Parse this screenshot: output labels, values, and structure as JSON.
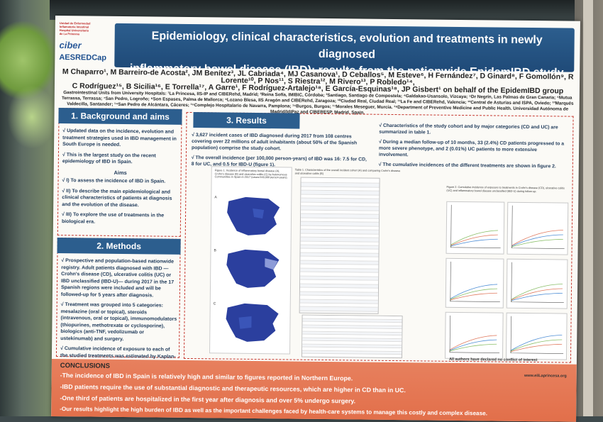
{
  "poster": {
    "logos": {
      "hospital_line1": "Unidad de Enfermedad",
      "hospital_line2": "Inflamatoria Intestinal",
      "hospital_line3": "Hospital Universitario",
      "hospital_line4": "de La Princesa",
      "ciber": "ciber",
      "aesredcap": "AESREDCap"
    },
    "title_line1": "Epidemiology, clinical characteristics, evolution and treatments in newly diagnosed",
    "title_line2": "inflammatory bowel disease (IBD): results from the nationwide EpidemIBD study of GETECCU",
    "authors_line1": "M Chaparro¹, M Barreiro-de Acosta², JM Benítez³, JL Cabriada⁴, MJ Casanova¹, D Ceballos⁵, M Esteve⁶, H Fernández⁷, D Ginard⁸, F Gomollón⁹, R Lorente¹⁰, P Nos¹¹, S Riestra¹², M Rivero¹³, P Robledo¹⁴,",
    "authors_line2": "C Rodríguez¹⁵, B Sicilia¹⁶, E Torrella¹⁷, A Garre¹, F Rodríguez-Artalejo¹⁸, E García-Esquinas¹⁸, JP Gisbert¹ on behalf of the EpidemIBD group",
    "affiliations": "Gastrointestinal Units from University Hospitals: ¹La Princesa, IIS-IP and CIBERehd, Madrid; ²Reina Sofía, IMIBIC, Córdoba; ³Santiago, Santiago de Compostela; ⁴Galdakao-Usansolo, Vizcaya; ⁵Dr Negrín, Las Palmas de Gran Canaria; ⁶Mutua Terrassa, Terrassa; ⁷San Pedro, Logroño; ⁸Son Espases, Palma de Mallorca; ⁹Lozano Blesa, IIS Aragón and CIBERehd, Zaragoza; ¹⁰Ciudad Real, Ciudad Real; ¹¹La Fe and CIBERehd, Valencia; ¹²Central de Asturias and ISPA, Oviedo; ¹³Marqués Valdecilla, Santander; ¹⁴San Pedro de Alcántara, Cáceres; ¹⁵Complejo Hospitalario de Navarra, Pamplona; ¹⁶Burgos, Burgos; ¹⁷Morales Meseguer, Murcia. ¹⁸Department of Preventive Medicine and Public Health. Universidad Autónoma de Madrid/IdiPaz and CIBERESP. Madrid, Spain.",
    "background": {
      "heading": "1. Background and aims",
      "p1": "√ Updated data on the incidence, evolution and treatment strategies used in IBD management in South Europe is needed.",
      "p2": "√ This is the largest study on the recent epidemiology of IBD in Spain.",
      "aims_label": "Aims",
      "aim1": "√ I) To assess the incidence of IBD in Spain.",
      "aim2": "√ II) To describe the main epidemiological and clinical characteristics of patients at diagnosis and the evolution of the disease.",
      "aim3": "√ III) To explore the use of treatments in the biological era."
    },
    "methods": {
      "heading": "2. Methods",
      "p1": "√ Prospective and population-based nationwide registry. Adult patients diagnosed with IBD —Crohn's disease (CD), ulcerative colitis (UC) or IBD unclassified (IBD-U)— during 2017 in the 17 Spanish regions were included and will be followed-up for 5 years after diagnosis.",
      "p2": "√ Treatment was grouped into 5 categories: mesalazine (oral or topical), steroids (intravenous, oral or topical), immunomodulators (thiopurines, methotrexate or cyclosporine), biologics (anti-TNF, vedolizumab or ustekinumab) and surgery.",
      "p3": "√ Cumulative incidence of exposure to each of the studied treatments was estimated by Kaplan-Meier curves."
    },
    "results": {
      "heading": "3. Results",
      "p1": "√ 3,627 incident cases of IBD diagnosed during 2017 from 108 centres covering over 22 millions of adult inhabitants (about 50% of the Spanish population) comprise the study cohort.",
      "p2": "√ The overall incidence (per 100,000 person-years) of IBD was 16: 7.5 for CD, 8 for UC, and 0.5 for IBD-U (figure 1).",
      "p3": "√ Characteristics of the study cohort and by major categories (CD and UC) are summarized in table 1.",
      "p4": "√ During a median follow-up of 10 months, 33 (2.4%) CD patients progressed to a more severe phenotype, and 2 (0.01%) UC patients to more extensive involvement.",
      "p5": "√ The cumulative incidences of the different treatments are shown in figure 2.",
      "fig1_caption": "Figure 1. Incidence of inflammatory bowel disease (A), Crohn's disease (B) and ulcerative colitis (C) by Autonomous Communities in Spain in 2017 (cases/100,000 person-years).",
      "fig2_caption": "Figure 2. Cumulative incidence of exposure to treatments in Crohn's disease (CD), ulcerative colitis (UC) and inflammatory bowel disease unclassified (IBD-U) during follow-up.",
      "table_caption": "Table 1. Characteristics of the overall incident cohort (A) and comparing Crohn's disease and ulcerative colitis (B)",
      "map_labels": [
        "A",
        "B",
        "C"
      ]
    },
    "conclusions": {
      "heading": "CONCLUSIONS",
      "line1": "-The incidence of IBD in Spain is relatively high and similar to figures reported in Northern Europe.",
      "line2": "-IBD patients require the use of substantial diagnostic and therapeutic resources, which are higher in CD than in UC.",
      "line3": "-One third of patients are hospitalized in the first year after diagnosis and over 5% undergo surgery.",
      "line4": "-Our results highlight the high burden of IBD as well as the important challenges faced by health-care systems to manage this costly and complex disease."
    },
    "footer": {
      "coi": "All authors have declared no conflict of interest",
      "url": "www.eiiLaprincesa.org"
    }
  }
}
